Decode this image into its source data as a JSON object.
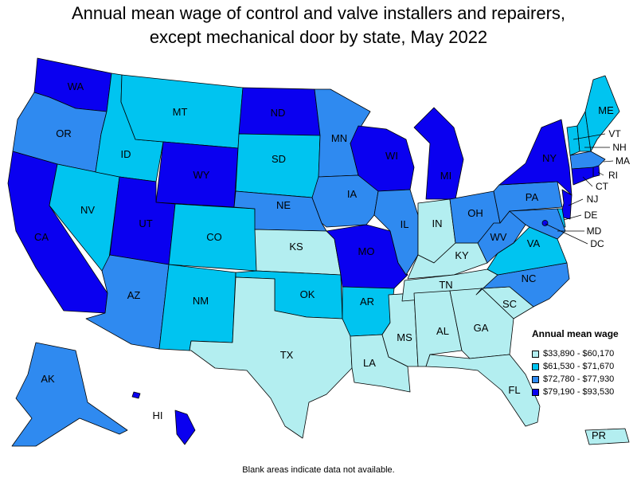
{
  "title_line1": "Annual mean wage of control and valve installers and repairers,",
  "title_line2": "except mechanical door by state, May 2022",
  "legend": {
    "title": "Annual mean wage",
    "bins": [
      {
        "label": "$33,890 - $60,170",
        "color": "#b3eef0"
      },
      {
        "label": "$61,530 - $71,670",
        "color": "#00c4f0"
      },
      {
        "label": "$72,780 - $77,930",
        "color": "#2f8af0"
      },
      {
        "label": "$79,190 - $93,530",
        "color": "#0a00f0"
      }
    ]
  },
  "note": "Blank areas indicate data not available.",
  "states": {
    "WA": 3,
    "OR": 2,
    "CA": 3,
    "NV": 1,
    "ID": 1,
    "MT": 1,
    "WY": 3,
    "UT": 3,
    "AZ": 2,
    "CO": 1,
    "NM": 1,
    "ND": 3,
    "SD": 1,
    "NE": 2,
    "KS": 0,
    "OK": 1,
    "TX": 0,
    "MN": 2,
    "IA": 2,
    "MO": 3,
    "AR": 1,
    "LA": 0,
    "WI": 3,
    "IL": 2,
    "MS": 0,
    "MI": 3,
    "IN": 0,
    "KY": 0,
    "TN": 0,
    "AL": 0,
    "OH": 2,
    "GA": 0,
    "FL": 0,
    "SC": 0,
    "NC": 2,
    "VA": 1,
    "WV": 2,
    "PA": 2,
    "NY": 3,
    "VT": 1,
    "NH": 1,
    "ME": 1,
    "MA": 2,
    "RI": 3,
    "CT": 3,
    "NJ": 3,
    "DE": 1,
    "MD": 2,
    "DC": 3,
    "AK": 2,
    "HI": 3,
    "PR": 0
  },
  "abbr_labels": [
    "WA",
    "OR",
    "CA",
    "NV",
    "ID",
    "MT",
    "WY",
    "UT",
    "AZ",
    "CO",
    "NM",
    "ND",
    "SD",
    "NE",
    "KS",
    "OK",
    "TX",
    "MN",
    "IA",
    "MO",
    "AR",
    "LA",
    "WI",
    "IL",
    "MS",
    "MI",
    "IN",
    "KY",
    "TN",
    "AL",
    "OH",
    "GA",
    "FL",
    "SC",
    "NC",
    "VA",
    "WV",
    "PA",
    "NY",
    "ME",
    "AK",
    "HI",
    "PR"
  ],
  "callout_labels": [
    "VT",
    "NH",
    "MA",
    "RI",
    "CT",
    "NJ",
    "DE",
    "MD",
    "DC"
  ]
}
